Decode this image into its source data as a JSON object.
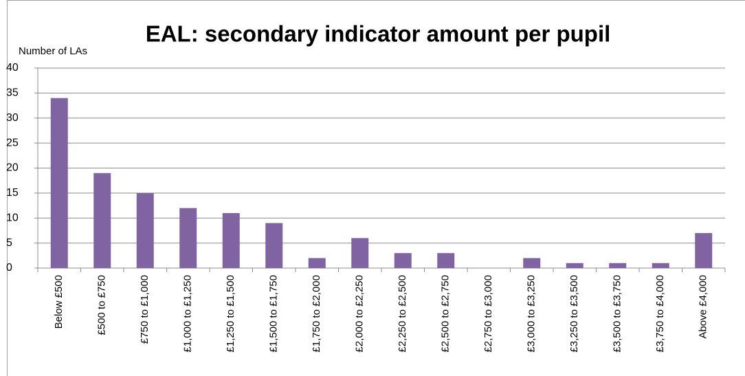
{
  "chart_data": {
    "type": "bar",
    "title": "EAL: secondary indicator amount per pupil",
    "y_label": "Number of LAs",
    "categories": [
      "Below £500",
      "£500 to £750",
      "£750 to £1,000",
      "£1,000 to £1,250",
      "£1,250 to £1,500",
      "£1,500 to £1,750",
      "£1,750 to £2,000",
      "£2,000 to £2,250",
      "£2,250 to £2,500",
      "£2,500 to £2,750",
      "£2,750 to £3,000",
      "£3,000 to £3,250",
      "£3,250 to £3,500",
      "£3,500 to £3,750",
      "£3,750 to £4,000",
      "Above £4,000"
    ],
    "values": [
      34,
      19,
      15,
      12,
      11,
      9,
      2,
      6,
      3,
      3,
      0,
      2,
      1,
      1,
      1,
      7
    ],
    "color": "#8064a2",
    "ylim": [
      0,
      40
    ],
    "yticks": [
      0,
      5,
      10,
      15,
      20,
      25,
      30,
      35,
      40
    ],
    "grid": true
  }
}
